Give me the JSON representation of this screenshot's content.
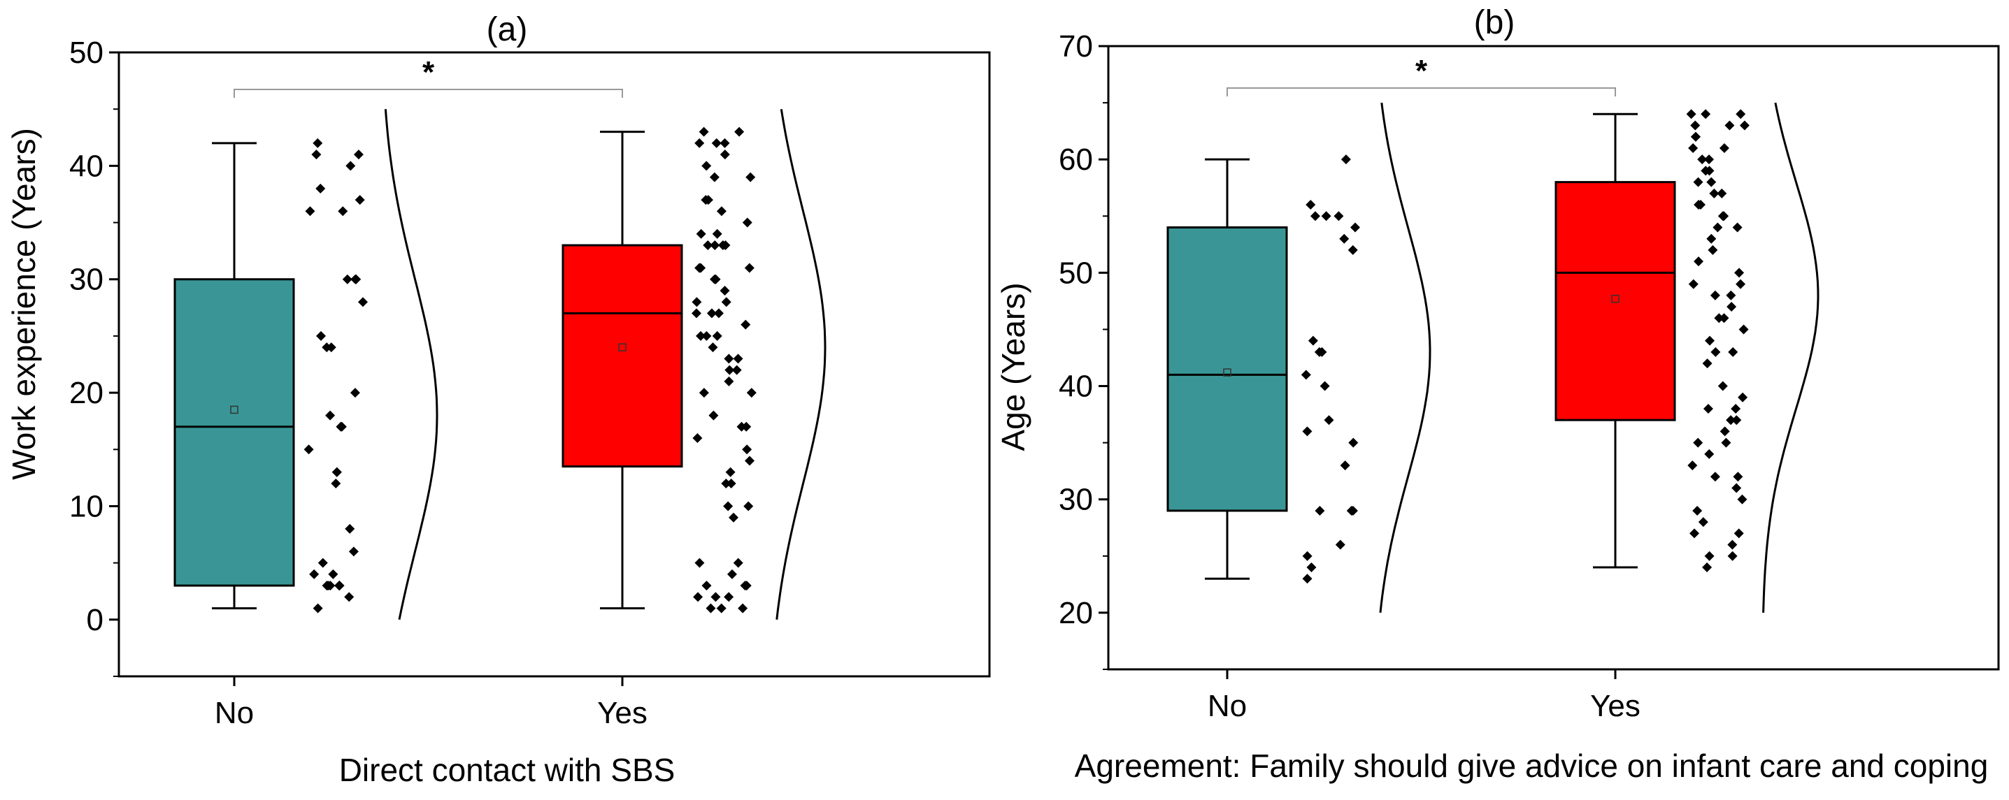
{
  "chart_data": [
    {
      "type": "box",
      "panel": "a",
      "title": "(a)",
      "xlabel": "Direct contact with SBS",
      "ylabel": "Work experience (Years)",
      "categories": [
        "No",
        "Yes"
      ],
      "ylim": [
        -5,
        50
      ],
      "yticks": [
        0,
        10,
        20,
        30,
        40,
        50
      ],
      "tick_labels": [
        "0",
        "10",
        "20",
        "30",
        "40",
        "50"
      ],
      "significance": "*",
      "boxes": [
        {
          "category": "No",
          "min": 1,
          "q1": 3,
          "median": 17,
          "q3": 30,
          "max": 42,
          "mean": 18.5,
          "color": "#3a9696"
        },
        {
          "category": "Yes",
          "min": 1,
          "q1": 13.5,
          "median": 27,
          "q3": 33,
          "max": 43,
          "mean": 24,
          "color": "#ff0000"
        }
      ],
      "points": [
        [
          1,
          2,
          3,
          4,
          5,
          6,
          8,
          12,
          13,
          13,
          15,
          17,
          17,
          18,
          20,
          24,
          24,
          25,
          28,
          30,
          30,
          30,
          36,
          36,
          37,
          38,
          40,
          41,
          41,
          42,
          3,
          3,
          3,
          3,
          3,
          4
        ],
        [
          1,
          1,
          1,
          2,
          2,
          2,
          3,
          3,
          3,
          4,
          5,
          5,
          9,
          10,
          10,
          12,
          12,
          13,
          14,
          15,
          16,
          17,
          17,
          18,
          20,
          20,
          21,
          22,
          22,
          23,
          23,
          24,
          25,
          25,
          25,
          26,
          27,
          27,
          27,
          28,
          28,
          29,
          30,
          30,
          31,
          31,
          31,
          31,
          33,
          33,
          33,
          33,
          34,
          34,
          35,
          36,
          37,
          37,
          39,
          39,
          40,
          41,
          42,
          42,
          42,
          43,
          43
        ]
      ],
      "density": [
        {
          "peak": 18,
          "sd": 12,
          "ymin": 0,
          "ymax": 45
        },
        {
          "peak": 24,
          "sd": 12,
          "ymin": 0,
          "ymax": 45
        }
      ]
    },
    {
      "type": "box",
      "panel": "b",
      "title": "(b)",
      "xlabel": "Agreement: Family should give advice on infant care and coping",
      "ylabel": "Age (Years)",
      "categories": [
        "No",
        "Yes"
      ],
      "ylim": [
        15,
        70
      ],
      "yticks": [
        20,
        30,
        40,
        50,
        60,
        70
      ],
      "tick_labels": [
        "20",
        "30",
        "40",
        "50",
        "60",
        "70"
      ],
      "significance": "*",
      "boxes": [
        {
          "category": "No",
          "min": 23,
          "q1": 29,
          "median": 41,
          "q3": 54,
          "max": 60,
          "mean": 41.2,
          "color": "#3a9696"
        },
        {
          "category": "Yes",
          "min": 24,
          "q1": 37,
          "median": 50,
          "q3": 58,
          "max": 64,
          "mean": 47.7,
          "color": "#ff0000"
        }
      ],
      "points": [
        [
          23,
          24,
          25,
          26,
          29,
          29,
          29,
          33,
          35,
          36,
          37,
          40,
          41,
          43,
          43,
          44,
          52,
          53,
          54,
          55,
          55,
          55,
          56,
          60
        ],
        [
          24,
          25,
          25,
          26,
          27,
          27,
          28,
          29,
          30,
          31,
          32,
          32,
          33,
          34,
          35,
          35,
          36,
          37,
          37,
          38,
          38,
          39,
          40,
          42,
          43,
          43,
          44,
          45,
          46,
          46,
          47,
          48,
          48,
          49,
          49,
          50,
          51,
          52,
          53,
          54,
          54,
          55,
          55,
          56,
          56,
          57,
          57,
          58,
          58,
          59,
          59,
          60,
          60,
          61,
          61,
          62,
          62,
          63,
          63,
          63,
          64,
          64,
          64
        ]
      ],
      "density": [
        {
          "peak": 43,
          "sd": 11,
          "ymin": 20,
          "ymax": 65
        },
        {
          "peak": 48,
          "sd": 10,
          "ymin": 20,
          "ymax": 65
        }
      ]
    }
  ]
}
